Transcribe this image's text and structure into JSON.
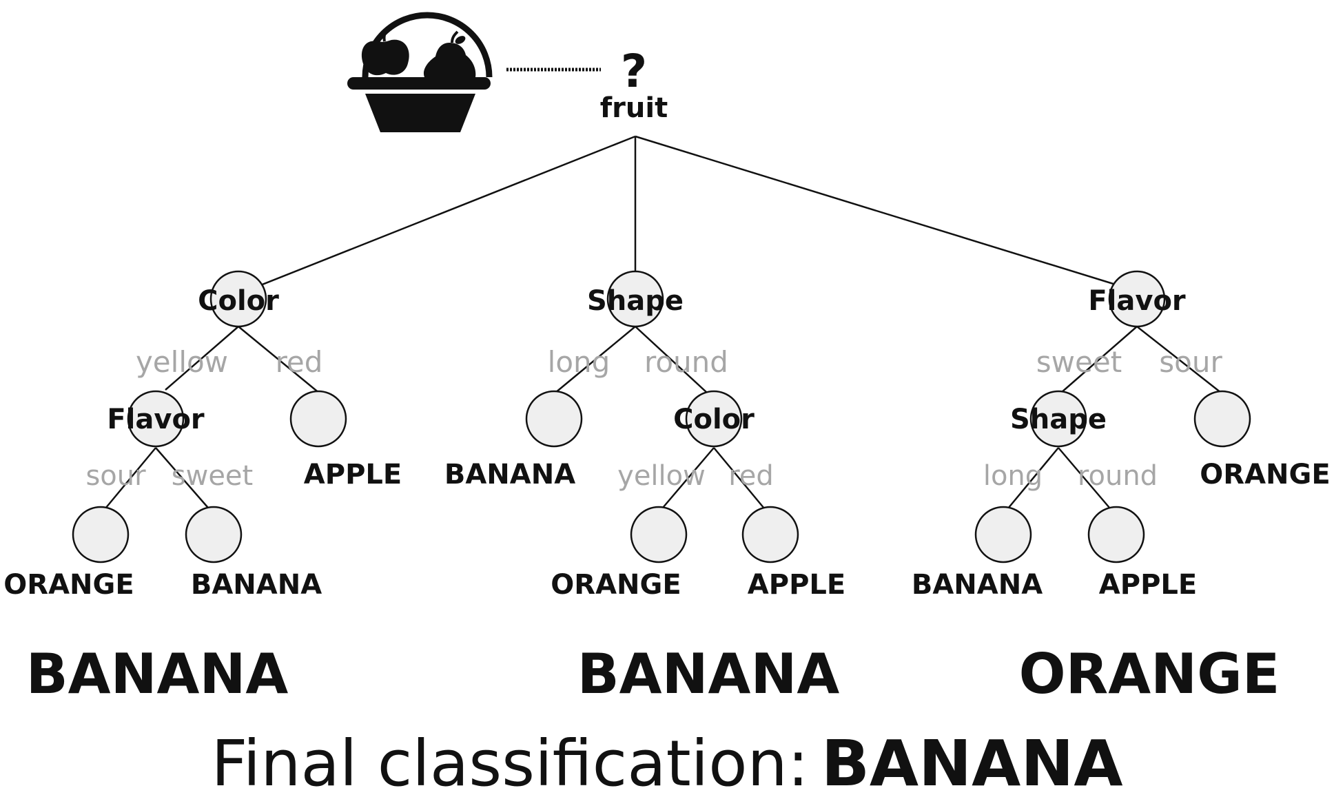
{
  "root": {
    "symbol": "?",
    "label": "fruit",
    "icon": "fruit-basket-icon"
  },
  "trees": [
    {
      "root_label": "Color",
      "branches": [
        {
          "edge": "yellow",
          "node": "Flavor",
          "branches": [
            {
              "edge": "sour",
              "leaf": "ORANGE"
            },
            {
              "edge": "sweet",
              "leaf": "BANANA"
            }
          ]
        },
        {
          "edge": "red",
          "leaf": "APPLE"
        }
      ],
      "result": "BANANA"
    },
    {
      "root_label": "Shape",
      "branches": [
        {
          "edge": "long",
          "leaf": "BANANA"
        },
        {
          "edge": "round",
          "node": "Color",
          "branches": [
            {
              "edge": "yellow",
              "leaf": "ORANGE"
            },
            {
              "edge": "red",
              "leaf": "APPLE"
            }
          ]
        }
      ],
      "result": "BANANA"
    },
    {
      "root_label": "Flavor",
      "branches": [
        {
          "edge": "sweet",
          "node": "Shape",
          "branches": [
            {
              "edge": "long",
              "leaf": "BANANA"
            },
            {
              "edge": "round",
              "leaf": "APPLE"
            }
          ]
        },
        {
          "edge": "sour",
          "leaf": "ORANGE"
        }
      ],
      "result": "ORANGE"
    }
  ],
  "final": {
    "prefix": "Final classification:",
    "value": "BANANA"
  }
}
